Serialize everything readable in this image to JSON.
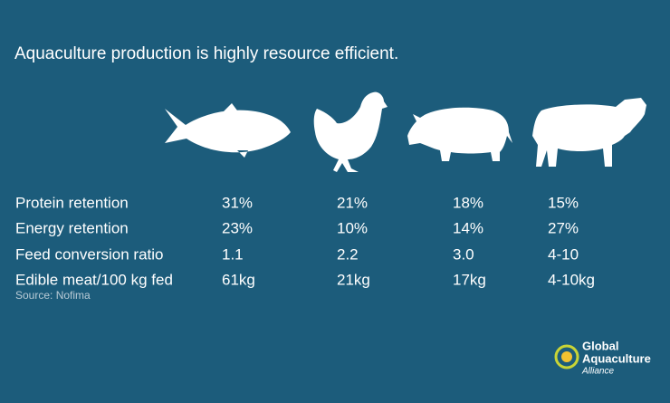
{
  "title": "Aquaculture production is highly resource efficient.",
  "table": {
    "rows": [
      [
        "Protein retention",
        "31%",
        "21%",
        "18%",
        "15%"
      ],
      [
        "Energy retention",
        "23%",
        "10%",
        "14%",
        "27%"
      ],
      [
        "Feed conversion ratio",
        "1.1",
        "2.2",
        "3.0",
        "4-10"
      ],
      [
        "Edible meat/100 kg fed",
        "61kg",
        "21kg",
        "17kg",
        "4-10kg"
      ]
    ]
  },
  "source": "Source: Nofima",
  "logo": {
    "lines": [
      "Global",
      "Aquaculture",
      "Alliance"
    ]
  }
}
